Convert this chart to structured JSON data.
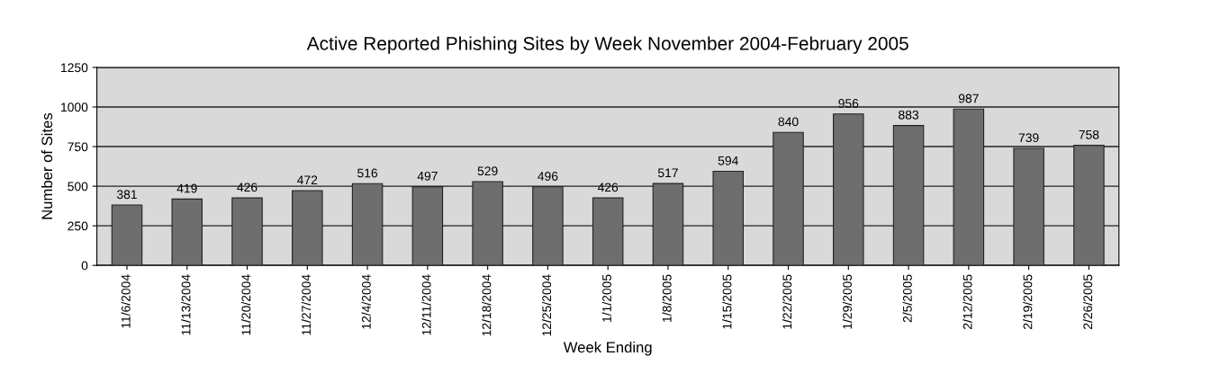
{
  "chart_data": {
    "type": "bar",
    "title": "Active Reported Phishing Sites by Week November 2004-February 2005",
    "xlabel": "Week Ending",
    "ylabel": "Number of Sites",
    "categories": [
      "11/6/2004",
      "11/13/2004",
      "11/20/2004",
      "11/27/2004",
      "12/4/2004",
      "12/11/2004",
      "12/18/2004",
      "12/25/2004",
      "1/1/2005",
      "1/8/2005",
      "1/15/2005",
      "1/22/2005",
      "1/29/2005",
      "2/5/2005",
      "2/12/2005",
      "2/19/2005",
      "2/26/2005"
    ],
    "values": [
      381,
      419,
      426,
      472,
      516,
      497,
      529,
      496,
      426,
      517,
      594,
      840,
      956,
      883,
      987,
      739,
      758
    ],
    "color": "#6e6e6e",
    "ylim": [
      0,
      1250
    ],
    "yticks": [
      0,
      250,
      500,
      750,
      1000,
      1250
    ],
    "grid": "y",
    "data_labels": true
  }
}
